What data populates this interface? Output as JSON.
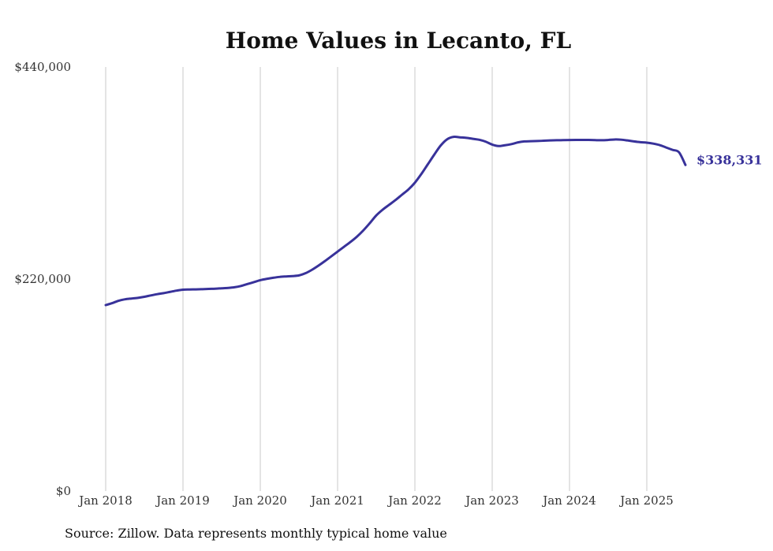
{
  "colors": {
    "line": "#38329a",
    "grid": "#c8c8c8",
    "text": "#333333",
    "background": "#ffffff"
  },
  "chart_data": {
    "type": "line",
    "title": "Home Values in Lecanto, FL",
    "xlabel": "",
    "ylabel": "",
    "ylim": [
      0,
      440000
    ],
    "y_ticks": [
      0,
      220000,
      440000
    ],
    "y_tick_labels": [
      "$0",
      "$220,000",
      "$440,000"
    ],
    "x_ticks": [
      "2018-01",
      "2019-01",
      "2020-01",
      "2021-01",
      "2022-01",
      "2023-01",
      "2024-01",
      "2025-01"
    ],
    "x_tick_labels": [
      "Jan 2018",
      "Jan 2019",
      "Jan 2020",
      "Jan 2021",
      "Jan 2022",
      "Jan 2023",
      "Jan 2024",
      "Jan 2025"
    ],
    "grid": {
      "vertical": true,
      "horizontal": false
    },
    "end_label": "$338,331",
    "series": [
      {
        "x": [
          "2018-01",
          "2018-02",
          "2018-03",
          "2018-04",
          "2018-05",
          "2018-06",
          "2018-07",
          "2018-08",
          "2018-09",
          "2018-10",
          "2018-11",
          "2018-12",
          "2019-01",
          "2019-02",
          "2019-03",
          "2019-04",
          "2019-05",
          "2019-06",
          "2019-07",
          "2019-08",
          "2019-09",
          "2019-10",
          "2019-11",
          "2019-12",
          "2020-01",
          "2020-02",
          "2020-03",
          "2020-04",
          "2020-05",
          "2020-06",
          "2020-07",
          "2020-08",
          "2020-09",
          "2020-10",
          "2020-11",
          "2020-12",
          "2021-01",
          "2021-02",
          "2021-03",
          "2021-04",
          "2021-05",
          "2021-06",
          "2021-07",
          "2021-08",
          "2021-09",
          "2021-10",
          "2021-11",
          "2021-12",
          "2022-01",
          "2022-02",
          "2022-03",
          "2022-04",
          "2022-05",
          "2022-06",
          "2022-07",
          "2022-08",
          "2022-09",
          "2022-10",
          "2022-11",
          "2022-12",
          "2023-01",
          "2023-02",
          "2023-03",
          "2023-04",
          "2023-05",
          "2023-06",
          "2023-07",
          "2023-08",
          "2023-09",
          "2023-10",
          "2023-11",
          "2023-12",
          "2024-01",
          "2024-02",
          "2024-03",
          "2024-04",
          "2024-05",
          "2024-06",
          "2024-07",
          "2024-08",
          "2024-09",
          "2024-10",
          "2024-11",
          "2024-12",
          "2025-01",
          "2025-02",
          "2025-03",
          "2025-04",
          "2025-05",
          "2025-06",
          "2025-07"
        ],
        "values": [
          193000,
          195000,
          197500,
          199000,
          199800,
          200500,
          201600,
          203000,
          204300,
          205400,
          206700,
          208000,
          209000,
          209200,
          209300,
          209500,
          209800,
          210000,
          210400,
          210800,
          211500,
          212800,
          214800,
          216800,
          218800,
          220200,
          221300,
          222200,
          222700,
          223100,
          223800,
          226000,
          229500,
          233800,
          238500,
          243500,
          248500,
          253500,
          258500,
          264000,
          270500,
          278000,
          286000,
          292000,
          297000,
          302000,
          307500,
          313000,
          320000,
          329000,
          339000,
          349000,
          358500,
          365000,
          367500,
          367000,
          366500,
          365500,
          364500,
          362500,
          359500,
          358000,
          358800,
          360000,
          361800,
          362800,
          363000,
          363200,
          363500,
          363800,
          364000,
          364100,
          364200,
          364300,
          364400,
          364300,
          364100,
          364000,
          364300,
          364800,
          364600,
          363800,
          362800,
          362000,
          361500,
          360500,
          359000,
          356500,
          354000,
          351500,
          338331
        ]
      }
    ]
  },
  "source_text": "Source: Zillow. Data represents monthly typical home value"
}
